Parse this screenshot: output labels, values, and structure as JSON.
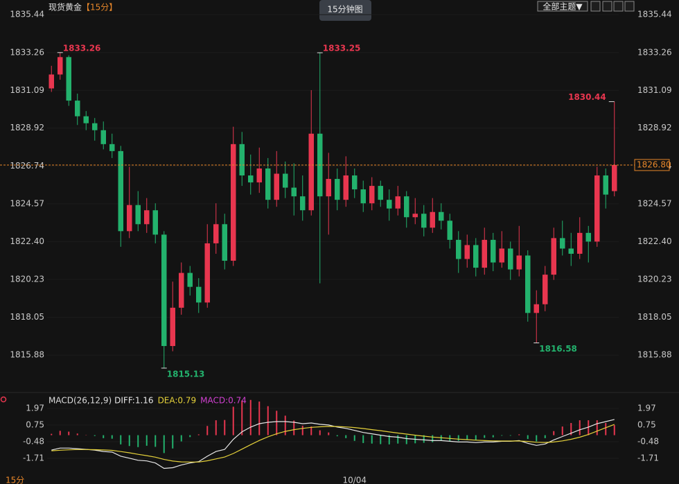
{
  "toolbar": {
    "symbol": "现货黄金",
    "period": "【15分】",
    "tab": "15分钟图",
    "theme_button": "全部主题▼",
    "period_footer": "15分"
  },
  "chart_data": [
    {
      "type": "candlestick",
      "categories": [
        null,
        null,
        null,
        null,
        null,
        null,
        null,
        null,
        null,
        null,
        null,
        null,
        null,
        null,
        null,
        null,
        null,
        null,
        null,
        null,
        null,
        null,
        null,
        null,
        null,
        null,
        null,
        null,
        null,
        null,
        null,
        null,
        null,
        null,
        null,
        "10/04",
        null,
        null,
        null,
        null,
        null,
        null,
        null,
        null,
        null,
        null,
        null,
        null,
        null,
        null,
        null,
        null,
        null,
        null,
        null,
        null,
        null,
        null,
        null,
        null,
        null,
        null,
        null,
        null,
        null,
        null
      ],
      "open": [
        1831.2,
        1832.0,
        1833.0,
        1830.5,
        1829.6,
        1829.2,
        1828.8,
        1828.0,
        1827.6,
        1823.0,
        1824.5,
        1823.4,
        1824.2,
        1822.8,
        1816.4,
        1818.6,
        1820.6,
        1819.8,
        1818.9,
        1822.3,
        1823.4,
        1821.3,
        1828.0,
        1826.2,
        1825.8,
        1826.6,
        1824.8,
        1826.3,
        1825.5,
        1825.0,
        1824.2,
        1828.6,
        1825.0,
        1826.0,
        1824.8,
        1826.2,
        1825.4,
        1824.6,
        1825.6,
        1824.8,
        1824.3,
        1825.0,
        1823.8,
        1824.0,
        1823.2,
        1824.1,
        1823.6,
        1822.5,
        1821.4,
        1822.2,
        1820.9,
        1822.5,
        1821.2,
        1822.0,
        1820.8,
        1821.6,
        1818.3,
        1818.8,
        1820.5,
        1822.6,
        1822.0,
        1821.7,
        1822.9,
        1822.4,
        1826.2,
        1825.3
      ],
      "high": [
        1832.5,
        1833.26,
        1833.1,
        1830.9,
        1829.9,
        1829.5,
        1829.3,
        1828.6,
        1827.9,
        1826.7,
        1825.3,
        1824.9,
        1824.6,
        1823.0,
        1820.1,
        1821.2,
        1821.0,
        1820.3,
        1823.4,
        1824.6,
        1824.0,
        1829.0,
        1828.7,
        1827.4,
        1827.8,
        1827.2,
        1827.6,
        1827.0,
        1826.9,
        1826.2,
        1831.1,
        1833.25,
        1827.5,
        1826.6,
        1827.3,
        1826.6,
        1825.9,
        1826.1,
        1825.9,
        1825.4,
        1825.6,
        1825.3,
        1824.9,
        1824.5,
        1824.9,
        1824.6,
        1824.0,
        1823.0,
        1822.8,
        1822.6,
        1823.2,
        1822.9,
        1823.0,
        1822.4,
        1823.3,
        1821.9,
        1819.6,
        1821.0,
        1823.2,
        1823.6,
        1822.9,
        1823.8,
        1823.3,
        1826.7,
        1826.6,
        1830.44
      ],
      "low": [
        1831.0,
        1831.7,
        1830.2,
        1829.1,
        1828.8,
        1828.2,
        1827.7,
        1827.2,
        1822.1,
        1822.6,
        1823.0,
        1822.9,
        1822.3,
        1815.13,
        1816.1,
        1818.2,
        1819.3,
        1818.3,
        1818.6,
        1821.7,
        1820.8,
        1821.0,
        1825.6,
        1825.1,
        1825.2,
        1824.3,
        1824.4,
        1824.9,
        1823.9,
        1823.6,
        1823.9,
        1820.0,
        1822.8,
        1824.2,
        1824.4,
        1824.9,
        1824.1,
        1824.2,
        1824.4,
        1823.6,
        1823.9,
        1823.2,
        1823.4,
        1822.7,
        1822.9,
        1823.1,
        1822.0,
        1820.6,
        1820.9,
        1820.4,
        1820.5,
        1820.7,
        1820.9,
        1820.2,
        1820.4,
        1817.8,
        1816.58,
        1818.4,
        1820.2,
        1821.6,
        1821.0,
        1821.4,
        1821.2,
        1822.1,
        1824.3,
        1825.0
      ],
      "close": [
        1832.0,
        1833.0,
        1830.5,
        1829.6,
        1829.2,
        1828.8,
        1828.0,
        1827.6,
        1823.0,
        1824.5,
        1823.4,
        1824.2,
        1822.8,
        1816.4,
        1818.6,
        1820.6,
        1819.8,
        1818.9,
        1822.3,
        1823.4,
        1821.3,
        1828.0,
        1826.2,
        1825.8,
        1826.6,
        1824.8,
        1826.3,
        1825.5,
        1825.0,
        1824.2,
        1828.6,
        1825.0,
        1826.0,
        1824.8,
        1826.2,
        1825.4,
        1824.6,
        1825.6,
        1824.8,
        1824.3,
        1825.0,
        1823.8,
        1824.0,
        1823.2,
        1824.1,
        1823.6,
        1822.5,
        1821.4,
        1822.2,
        1820.9,
        1822.5,
        1821.2,
        1822.0,
        1820.8,
        1821.6,
        1818.3,
        1818.8,
        1820.5,
        1822.6,
        1822.0,
        1821.7,
        1822.9,
        1822.4,
        1826.2,
        1825.1,
        1826.8
      ],
      "up_color": "#e8364f",
      "down_color": "#23b26d",
      "ylim": [
        1814.05,
        1836.28
      ],
      "yticks": [
        1835.44,
        1833.26,
        1831.09,
        1828.92,
        1826.74,
        1824.57,
        {
          "value": 1822.4,
          "label": "1822.40"
        },
        1820.23,
        1818.05,
        1815.88
      ],
      "last_price": {
        "value": 1826.8,
        "label": "1826.80",
        "color": "#e8872a"
      },
      "annotations": [
        {
          "label": "1833.26",
          "value": 1833.26
        },
        {
          "label": "1833.25",
          "value": 1833.25
        },
        {
          "label": "1830.44",
          "value": 1830.44
        },
        {
          "label": "1815.13",
          "value": 1815.13
        },
        {
          "label": "1816.58",
          "value": 1816.58
        }
      ]
    },
    {
      "type": "macd",
      "title": "MACD(26,12,9)",
      "ylim": [
        -3.09,
        2.69
      ],
      "yticks": [
        1.97,
        0.75,
        -0.48,
        -1.71
      ],
      "up_color": "#e8364f",
      "down_color": "#23b26d",
      "series": [
        {
          "name": "DIFF:1.16",
          "color": "#e8e8e8",
          "values": [
            -1.1,
            -0.95,
            -0.95,
            -1.0,
            -1.05,
            -1.1,
            -1.2,
            -1.25,
            -1.55,
            -1.7,
            -1.85,
            -1.9,
            -2.05,
            -2.45,
            -2.4,
            -2.2,
            -2.05,
            -1.95,
            -1.55,
            -1.2,
            -1.05,
            -0.3,
            0.25,
            0.6,
            0.85,
            0.95,
            1.0,
            1.0,
            0.95,
            0.85,
            0.9,
            0.8,
            0.75,
            0.6,
            0.5,
            0.35,
            0.2,
            0.1,
            0.0,
            -0.1,
            -0.15,
            -0.25,
            -0.3,
            -0.35,
            -0.4,
            -0.4,
            -0.45,
            -0.5,
            -0.5,
            -0.55,
            -0.5,
            -0.5,
            -0.45,
            -0.45,
            -0.4,
            -0.6,
            -0.75,
            -0.65,
            -0.35,
            -0.1,
            0.15,
            0.4,
            0.6,
            0.85,
            1.0,
            1.16
          ]
        },
        {
          "name": "DEA:0.79",
          "color": "#e6d23a",
          "values": [
            -1.15,
            -1.11,
            -1.08,
            -1.06,
            -1.06,
            -1.07,
            -1.09,
            -1.12,
            -1.21,
            -1.3,
            -1.41,
            -1.51,
            -1.62,
            -1.79,
            -1.91,
            -1.97,
            -1.98,
            -1.98,
            -1.89,
            -1.75,
            -1.61,
            -1.35,
            -1.03,
            -0.7,
            -0.39,
            -0.12,
            0.1,
            0.28,
            0.41,
            0.5,
            0.58,
            0.62,
            0.65,
            0.64,
            0.61,
            0.56,
            0.49,
            0.41,
            0.33,
            0.24,
            0.16,
            0.08,
            0.0,
            -0.07,
            -0.14,
            -0.19,
            -0.24,
            -0.29,
            -0.33,
            -0.37,
            -0.4,
            -0.42,
            -0.43,
            -0.43,
            -0.43,
            -0.46,
            -0.52,
            -0.54,
            -0.5,
            -0.42,
            -0.3,
            -0.15,
            0.05,
            0.3,
            0.55,
            0.79
          ]
        },
        {
          "name": "MACD:0.74",
          "color": "#d040d0",
          "bars": true,
          "values": [
            0.1,
            0.32,
            0.26,
            0.12,
            0.02,
            -0.06,
            -0.22,
            -0.26,
            -0.68,
            -0.8,
            -0.88,
            -0.78,
            -0.86,
            -1.32,
            -0.98,
            -0.46,
            -0.14,
            0.06,
            0.68,
            1.1,
            1.12,
            2.1,
            2.56,
            2.6,
            2.48,
            2.14,
            1.8,
            1.44,
            1.08,
            0.7,
            0.64,
            0.36,
            0.2,
            -0.08,
            -0.22,
            -0.42,
            -0.58,
            -0.62,
            -0.66,
            -0.68,
            -0.62,
            -0.66,
            -0.6,
            -0.56,
            -0.52,
            -0.42,
            -0.42,
            -0.42,
            -0.34,
            -0.36,
            -0.2,
            -0.16,
            -0.04,
            -0.04,
            0.06,
            -0.28,
            -0.46,
            -0.22,
            0.3,
            0.64,
            0.9,
            1.1,
            1.1,
            1.1,
            0.9,
            0.74
          ]
        }
      ]
    }
  ]
}
